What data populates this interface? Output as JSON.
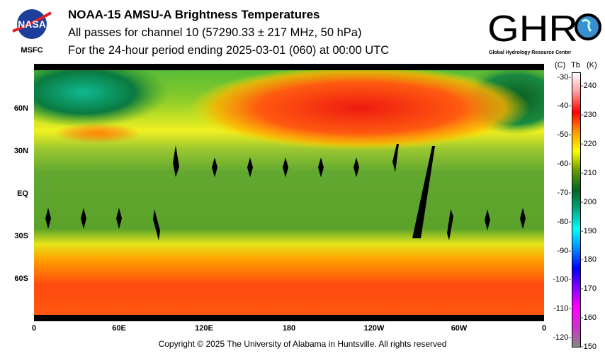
{
  "header": {
    "title": "NOAA-15 AMSU-A Brightness Temperatures",
    "subtitle": "All passes for channel 10 (57290.33 ± 217 MHz, 50 hPa)",
    "period": "For the 24-hour period ending 2025-03-01 (060) at 00:00 UTC",
    "left_logo": {
      "name": "NASA",
      "caption": "MSFC"
    },
    "right_logo": {
      "name": "GHRC",
      "caption": "Global Hydrology Resource Center"
    }
  },
  "map": {
    "lat_labels": [
      "60N",
      "30N",
      "EQ",
      "30S",
      "60S"
    ],
    "lon_labels": [
      "0",
      "60E",
      "120E",
      "180",
      "120W",
      "60W",
      "0"
    ]
  },
  "colorbar": {
    "header_c": "(C)",
    "header_tb": "Tb",
    "header_k": "(K)",
    "celsius_ticks": [
      "-30",
      "-40",
      "-50",
      "-60",
      "-70",
      "-80",
      "-90",
      "-100",
      "-110",
      "-120"
    ],
    "kelvin_ticks": [
      "240",
      "230",
      "220",
      "210",
      "200",
      "190",
      "180",
      "170",
      "160",
      "150"
    ],
    "range_k": [
      150,
      245
    ],
    "colors": [
      "#888888",
      "#cc33cc",
      "#ff00ff",
      "#8800ff",
      "#0000ff",
      "#0088ff",
      "#00ffff",
      "#00aa88",
      "#006622",
      "#669900",
      "#ffff00",
      "#ff9900",
      "#ff0000",
      "#ff9999",
      "#ffffff"
    ]
  },
  "footer": {
    "copyright": "Copyright © 2025 The University of Alabama in Huntsville.  All rights reserved"
  }
}
